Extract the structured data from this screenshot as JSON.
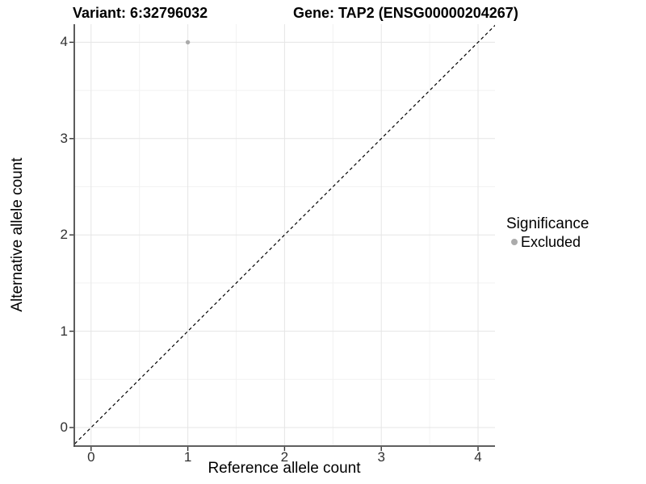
{
  "title": {
    "variant": "Variant: 6:32796032",
    "gene": "Gene: TAP2 (ENSG00000204267)"
  },
  "x_axis": {
    "label": "Reference allele count",
    "tick_values": [
      0,
      1,
      2,
      3,
      4
    ],
    "tick_labels": [
      "0",
      "1",
      "2",
      "3",
      "4"
    ]
  },
  "y_axis": {
    "label": "Alternative allele count",
    "tick_values": [
      0,
      1,
      2,
      3,
      4
    ],
    "tick_labels": [
      "0",
      "1",
      "2",
      "3",
      "4"
    ]
  },
  "legend": {
    "title": "Significance",
    "items": [
      {
        "label": "Excluded",
        "color": "#ababab"
      }
    ]
  },
  "colors": {
    "background": "#ffffff",
    "grid_major": "#e5e5e5",
    "grid_minor": "#f2f2f2",
    "axis_line": "#4a4a4a",
    "tick_mark": "#333333",
    "reference_line": "#000000",
    "point": "#ababab",
    "text": "#000000"
  },
  "chart_data": {
    "type": "scatter",
    "title": "Variant: 6:32796032   Gene: TAP2 (ENSG00000204267)",
    "xlabel": "Reference allele count",
    "ylabel": "Alternative allele count",
    "xlim": [
      -0.17,
      4.18
    ],
    "ylim": [
      -0.19,
      4.19
    ],
    "x_major_ticks": [
      0,
      1,
      2,
      3,
      4
    ],
    "y_major_ticks": [
      0,
      1,
      2,
      3,
      4
    ],
    "x_minor_ticks": [
      0.5,
      1.5,
      2.5,
      3.5
    ],
    "y_minor_ticks": [
      0.5,
      1.5,
      2.5,
      3.5
    ],
    "grid": "major+minor",
    "legend_position": "right",
    "series": [
      {
        "name": "Excluded",
        "color": "#ababab",
        "points": [
          {
            "x": 1,
            "y": 4
          }
        ]
      }
    ],
    "reference_line": {
      "slope": 1,
      "intercept": 0,
      "style": "dashed",
      "color": "#000000"
    }
  }
}
